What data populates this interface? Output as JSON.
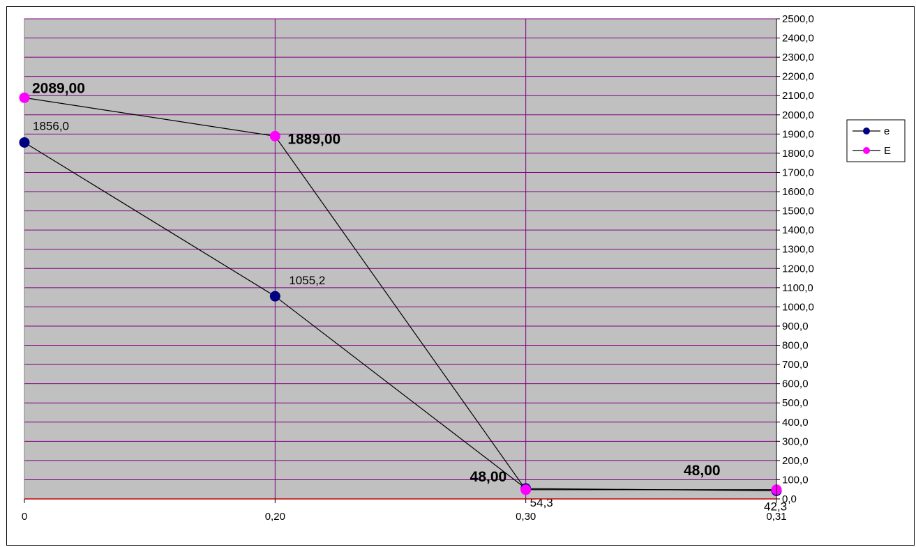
{
  "chart_data": {
    "type": "line",
    "categories": [
      "0",
      "0,20",
      "0,30",
      "0,31"
    ],
    "ylim": [
      0,
      2500
    ],
    "ytick_step": 100,
    "y_axis_side": "right",
    "grid": true,
    "legend_position": "right",
    "plot_bg_color": "#C0C0C0",
    "grid_color": "#800080",
    "zero_line_color": "#C00000",
    "series": [
      {
        "name": "e",
        "marker_color": "#000080",
        "values": [
          1856.0,
          1055.2,
          54.3,
          42.3
        ],
        "data_labels": [
          "1856,0",
          "1055,2",
          "54,3",
          "42,3"
        ]
      },
      {
        "name": "E",
        "marker_color": "#FF00FF",
        "values": [
          2089.0,
          1889.0,
          48.0,
          48.0
        ],
        "data_labels": [
          "2089,00",
          "1889,00",
          "48,00",
          "48,00"
        ]
      }
    ]
  }
}
